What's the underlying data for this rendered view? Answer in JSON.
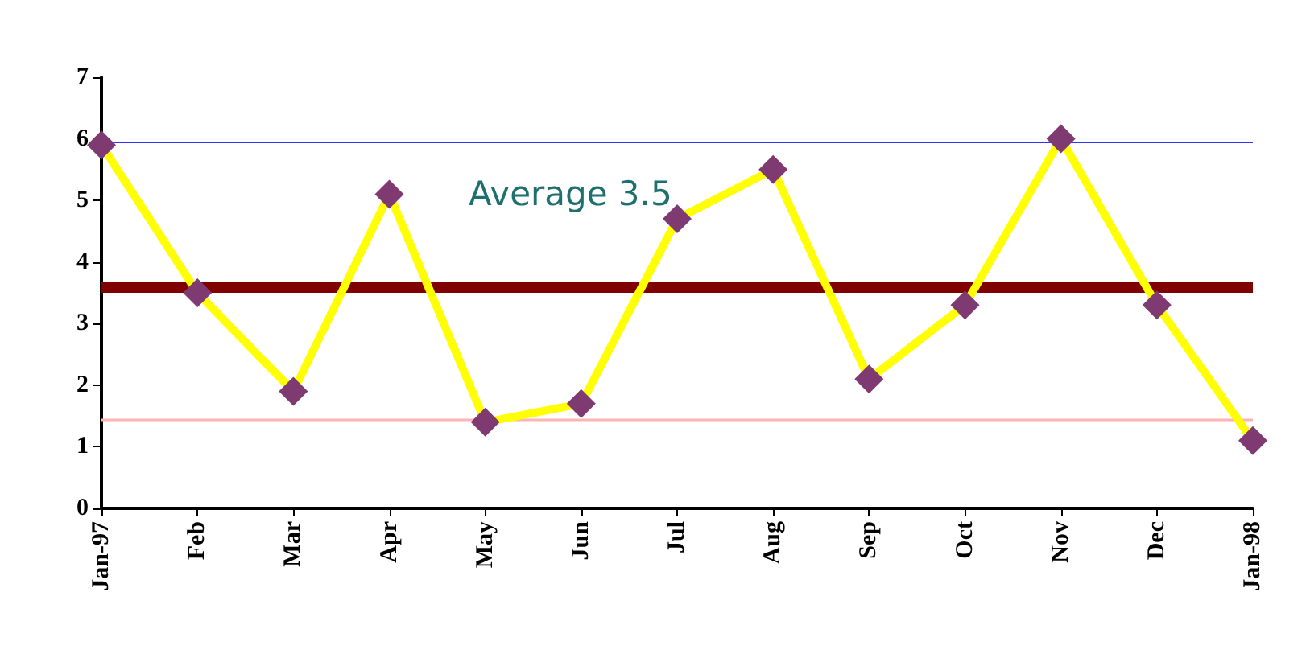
{
  "chart_data": {
    "type": "line",
    "categories": [
      "Jan-97",
      "Feb",
      "Mar",
      "Apr",
      "May",
      "Jun",
      "Jul",
      "Aug",
      "Sep",
      "Oct",
      "Nov",
      "Dec",
      "Jan-98"
    ],
    "series": [
      {
        "color": "#ffff00",
        "values": [
          5.9,
          3.5,
          1.9,
          5.1,
          1.4,
          1.7,
          4.7,
          5.5,
          2.1,
          3.3,
          6.0,
          3.3,
          1.1
        ]
      }
    ],
    "marker": "diamond",
    "ylim": [
      0,
      7
    ],
    "yticks": [
      0,
      1,
      2,
      3,
      4,
      5,
      6,
      7
    ],
    "grid": false,
    "ref_lines": [
      {
        "axis": "y",
        "value": 5.95,
        "color": "#3333ff"
      },
      {
        "axis": "y",
        "value": 3.6,
        "color": "#800000"
      },
      {
        "axis": "y",
        "value": 1.45,
        "color": "#ffb3b3"
      }
    ],
    "annotations": [
      "Average 3.5"
    ]
  }
}
